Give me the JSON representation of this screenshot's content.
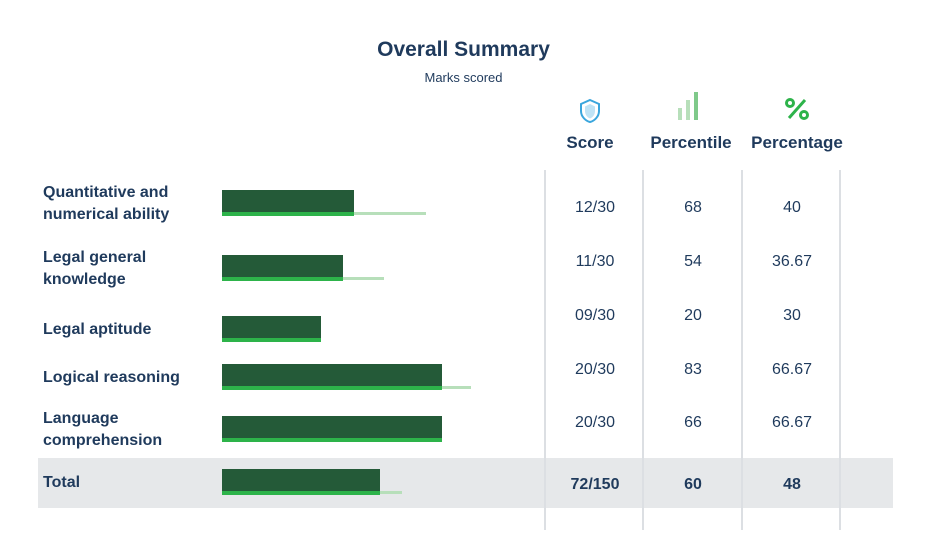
{
  "header": {
    "title": "Overall Summary",
    "subtitle": "Marks scored"
  },
  "columns": [
    "Score",
    "Percentile",
    "Percentage"
  ],
  "rows": [
    {
      "label": "Quantitative and numerical ability",
      "score": "12/30",
      "percentile": 68,
      "percentage": 40
    },
    {
      "label": "Legal general knowledge",
      "score": "11/30",
      "percentile": 54,
      "percentage": 36.67
    },
    {
      "label": "Legal aptitude",
      "score": "09/30",
      "percentile": 20,
      "percentage": 30
    },
    {
      "label": "Logical reasoning",
      "score": "20/30",
      "percentile": 83,
      "percentage": 66.67
    },
    {
      "label": "Language comprehension",
      "score": "20/30",
      "percentile": 66,
      "percentage": 66.67
    }
  ],
  "total": {
    "label": "Total",
    "score": "72/150",
    "percentile": 60,
    "percentage": 48
  }
}
